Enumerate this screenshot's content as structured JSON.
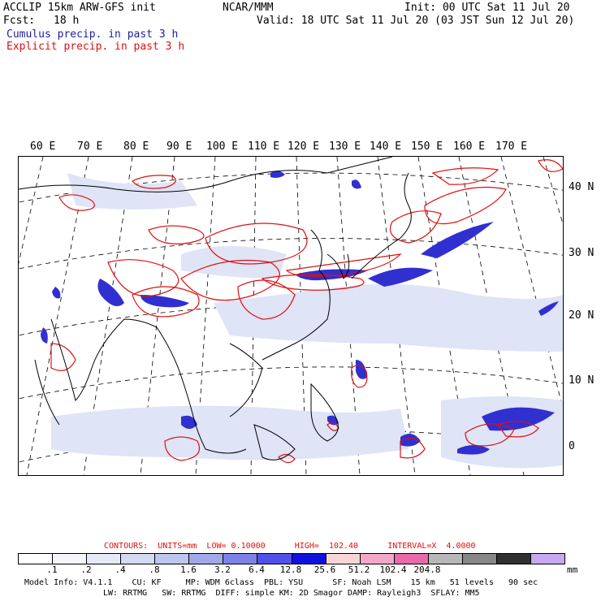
{
  "header": {
    "title_left": "ACCLIP 15km ARW-GFS init",
    "center": "NCAR/MMM",
    "init": "Init: 00 UTC Sat 11 Jul 20",
    "fcst_label": "Fcst:",
    "fcst_value": "18 h",
    "valid": "Valid: 18 UTC Sat 11 Jul 20 (03 JST Sun 12 Jul 20)",
    "legend_cumulus": "Cumulus precip. in past 3 h",
    "legend_explicit": "Explicit precip. in past 3 h"
  },
  "map": {
    "longitude_labels": [
      "60 E",
      "70 E",
      "80 E",
      "90 E",
      "100 E",
      "110 E",
      "120 E",
      "130 E",
      "140 E",
      "150 E",
      "160 E",
      "170 E"
    ],
    "latitude_labels": [
      "40 N",
      "30 N",
      "20 N",
      "10 N",
      "0"
    ],
    "colors": {
      "cumulus": "#2020c0",
      "explicit": "#e01010",
      "coast": "#000000",
      "grid": "#000000"
    }
  },
  "contours": {
    "text": "CONTOURS:  UNITS=mm  LOW= 0.10000      HIGH=  102.40      INTERVAL=X  4.0000"
  },
  "colorbar": {
    "colors": [
      "#ffffff",
      "#f4f6fb",
      "#e6eaf6",
      "#d4daf2",
      "#bcc6ee",
      "#a0aaea",
      "#7c82e6",
      "#5050ea",
      "#1010e0",
      "#f8d6d6",
      "#f4a8c8",
      "#e86aa8",
      "#b8b8b8",
      "#888888",
      "#303030",
      "#c8a8f0"
    ],
    "tick_labels": [
      ".1",
      ".2",
      ".4",
      ".8",
      "1.6",
      "3.2",
      "6.4",
      "12.8",
      "25.6",
      "51.2",
      "102.4",
      "204.8"
    ],
    "unit": "mm"
  },
  "footer": {
    "line1": "Model Info: V4.1.1    CU: KF     MP: WDM 6class  PBL: YSU      SF: Noah LSM    15 km   51 levels   90 sec",
    "line2": "LW: RRTMG   SW: RRTMG  DIFF: simple KM: 2D Smagor DAMP: Rayleigh3  SFLAY: MM5"
  }
}
